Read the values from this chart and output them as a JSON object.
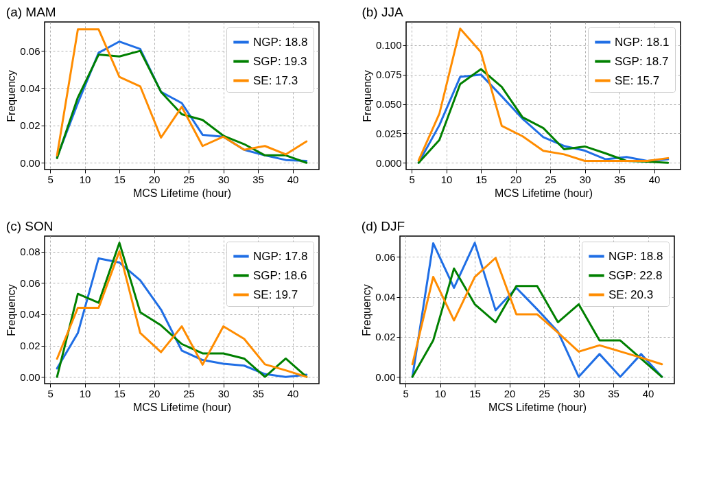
{
  "chart_data": [
    {
      "type": "line",
      "title": "(a) MAM",
      "xlabel": "MCS Lifetime (hour)",
      "ylabel": "Frequency",
      "x": [
        6,
        9,
        12,
        15,
        18,
        21,
        24,
        27,
        30,
        33,
        36,
        39,
        42
      ],
      "xlim": [
        4.2,
        43.8
      ],
      "xticks": [
        5,
        10,
        15,
        20,
        25,
        30,
        35,
        40
      ],
      "ylim": [
        -0.0036,
        0.0755
      ],
      "yticks": [
        {
          "value": 0,
          "label": "0.00"
        },
        {
          "value": 0.02,
          "label": "0.02"
        },
        {
          "value": 0.04,
          "label": "0.04"
        },
        {
          "value": 0.06,
          "label": "0.06"
        }
      ],
      "grid": true,
      "legend": "top right",
      "series": [
        {
          "name": "NGP: 18.8",
          "color": "#1f6ee5",
          "values": [
            0.003,
            0.032,
            0.059,
            0.065,
            0.061,
            0.038,
            0.032,
            0.015,
            0.014,
            0.007,
            0.004,
            0.0015,
            0.001
          ]
        },
        {
          "name": "SGP: 19.3",
          "color": "#008000",
          "values": [
            0.0025,
            0.035,
            0.058,
            0.057,
            0.06,
            0.038,
            0.026,
            0.023,
            0.0145,
            0.01,
            0.004,
            0.004,
            0.0
          ]
        },
        {
          "name": "SE: 17.3",
          "color": "#ff8c00",
          "values": [
            0.004,
            0.0715,
            0.0715,
            0.046,
            0.041,
            0.0135,
            0.03,
            0.009,
            0.014,
            0.007,
            0.009,
            0.0045,
            0.0115
          ]
        }
      ]
    },
    {
      "type": "line",
      "title": "(b) JJA",
      "xlabel": "MCS Lifetime (hour)",
      "ylabel": "Frequency",
      "x": [
        6,
        9,
        12,
        15,
        18,
        21,
        24,
        27,
        30,
        33,
        36,
        39,
        42
      ],
      "xlim": [
        4.2,
        43.8
      ],
      "xticks": [
        5,
        10,
        15,
        20,
        25,
        30,
        35,
        40
      ],
      "ylim": [
        -0.0057,
        0.1197
      ],
      "yticks": [
        {
          "value": 0,
          "label": "0.000"
        },
        {
          "value": 0.025,
          "label": "0.025"
        },
        {
          "value": 0.05,
          "label": "0.050"
        },
        {
          "value": 0.075,
          "label": "0.075"
        },
        {
          "value": 0.1,
          "label": "0.100"
        }
      ],
      "grid": true,
      "legend": "top right",
      "series": [
        {
          "name": "NGP: 18.1",
          "color": "#1f6ee5",
          "values": [
            0.0,
            0.032,
            0.073,
            0.075,
            0.0565,
            0.0374,
            0.0218,
            0.0143,
            0.0103,
            0.003,
            0.005,
            0.0016,
            0.003
          ]
        },
        {
          "name": "SGP: 18.7",
          "color": "#008000",
          "values": [
            0.0,
            0.0194,
            0.0669,
            0.0796,
            0.0645,
            0.0387,
            0.0295,
            0.0115,
            0.0139,
            0.008,
            0.0016,
            0.001,
            0.0
          ]
        },
        {
          "name": "SE: 15.7",
          "color": "#ff8c00",
          "values": [
            0.002,
            0.0417,
            0.114,
            0.094,
            0.0314,
            0.0226,
            0.0102,
            0.0072,
            0.0016,
            0.0016,
            0.0016,
            0.0016,
            0.004
          ]
        }
      ]
    },
    {
      "type": "line",
      "title": "(c) SON",
      "xlabel": "MCS Lifetime (hour)",
      "ylabel": "Frequency",
      "x": [
        6,
        9,
        12,
        15,
        18,
        21,
        24,
        27,
        30,
        33,
        36,
        39,
        42
      ],
      "xlim": [
        4.2,
        43.8
      ],
      "xticks": [
        5,
        10,
        15,
        20,
        25,
        30,
        35,
        40
      ],
      "ylim": [
        -0.0043,
        0.0899
      ],
      "yticks": [
        {
          "value": 0,
          "label": "0.00"
        },
        {
          "value": 0.02,
          "label": "0.02"
        },
        {
          "value": 0.04,
          "label": "0.04"
        },
        {
          "value": 0.06,
          "label": "0.06"
        },
        {
          "value": 0.08,
          "label": "0.08"
        }
      ],
      "grid": true,
      "legend": "top right",
      "series": [
        {
          "name": "NGP: 17.8",
          "color": "#1f6ee5",
          "values": [
            0.0054,
            0.028,
            0.0757,
            0.073,
            0.0617,
            0.043,
            0.0168,
            0.0108,
            0.0084,
            0.0072,
            0.0018,
            0.0,
            0.0014
          ]
        },
        {
          "name": "SGP: 18.6",
          "color": "#008000",
          "values": [
            0.0,
            0.053,
            0.0473,
            0.0856,
            0.0413,
            0.0329,
            0.021,
            0.015,
            0.015,
            0.0117,
            0.0,
            0.0117,
            0.0
          ]
        },
        {
          "name": "SE: 19.7",
          "color": "#ff8c00",
          "values": [
            0.0116,
            0.0441,
            0.0441,
            0.0802,
            0.0281,
            0.0158,
            0.0323,
            0.0078,
            0.0323,
            0.0243,
            0.008,
            0.0042,
            0.0
          ]
        }
      ]
    },
    {
      "type": "line",
      "title": "(d) DJF",
      "xlabel": "MCS Lifetime (hour)",
      "ylabel": "Frequency",
      "x": [
        6,
        9,
        12,
        15,
        18,
        21,
        24,
        27,
        30,
        33,
        36,
        39,
        42
      ],
      "xlim": [
        4.2,
        43.8
      ],
      "xticks": [
        5,
        10,
        15,
        20,
        25,
        30,
        35,
        40
      ],
      "ylim": [
        -0.0034,
        0.0704
      ],
      "yticks": [
        {
          "value": 0,
          "label": "0.00"
        },
        {
          "value": 0.02,
          "label": "0.02"
        },
        {
          "value": 0.04,
          "label": "0.04"
        },
        {
          "value": 0.06,
          "label": "0.06"
        }
      ],
      "grid": true,
      "legend": "top right",
      "series": [
        {
          "name": "NGP: 18.8",
          "color": "#1f6ee5",
          "values": [
            0.0,
            0.0668,
            0.0445,
            0.067,
            0.0333,
            0.0445,
            0.0338,
            0.0226,
            0.0,
            0.0114,
            0.0,
            0.0114,
            0.0
          ]
        },
        {
          "name": "SGP: 22.8",
          "color": "#008000",
          "values": [
            0.0,
            0.0182,
            0.0542,
            0.0363,
            0.0273,
            0.0454,
            0.0454,
            0.0273,
            0.0363,
            0.0182,
            0.0182,
            0.0091,
            0.0
          ]
        },
        {
          "name": "SE: 20.3",
          "color": "#ff8c00",
          "values": [
            0.0063,
            0.05,
            0.0282,
            0.0499,
            0.0595,
            0.0313,
            0.0313,
            0.0221,
            0.0126,
            0.0158,
            0.0127,
            0.0096,
            0.0063
          ]
        }
      ]
    }
  ]
}
